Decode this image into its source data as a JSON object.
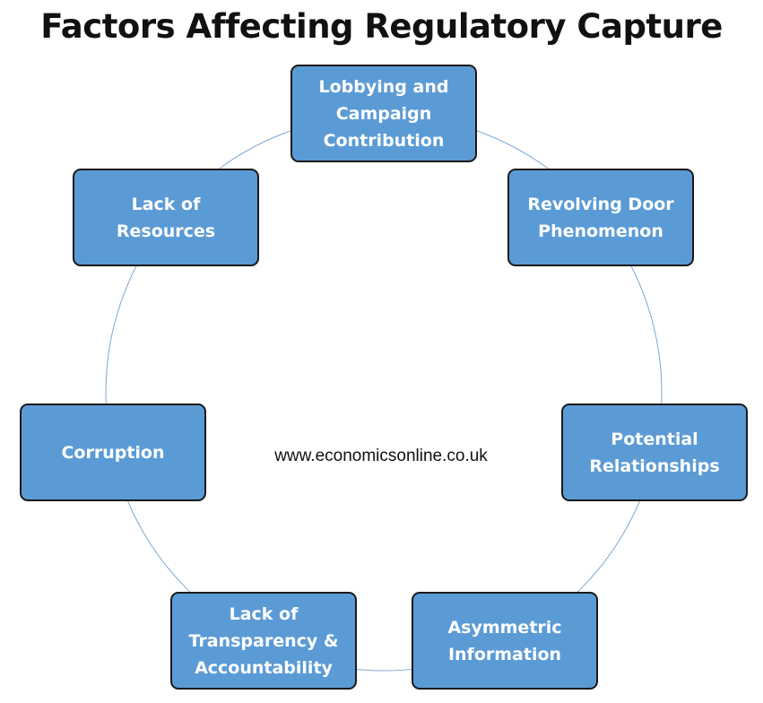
{
  "title": "Factors Affecting Regulatory Capture",
  "website": "www.economicsonline.co.uk",
  "colors": {
    "box_fill": "#5b9bd5",
    "box_border": "#1a1a1a",
    "ring_stroke": "#7fa7d0",
    "box_text": "#ffffff"
  },
  "factors": [
    {
      "label": "Lobbying and Campaign Contribution"
    },
    {
      "label": "Revolving Door Phenomenon"
    },
    {
      "label": "Potential Relationships"
    },
    {
      "label": "Asymmetric Information"
    },
    {
      "label": "Lack of Transparency & Accountability"
    },
    {
      "label": "Corruption"
    },
    {
      "label": "Lack of Resources"
    }
  ]
}
